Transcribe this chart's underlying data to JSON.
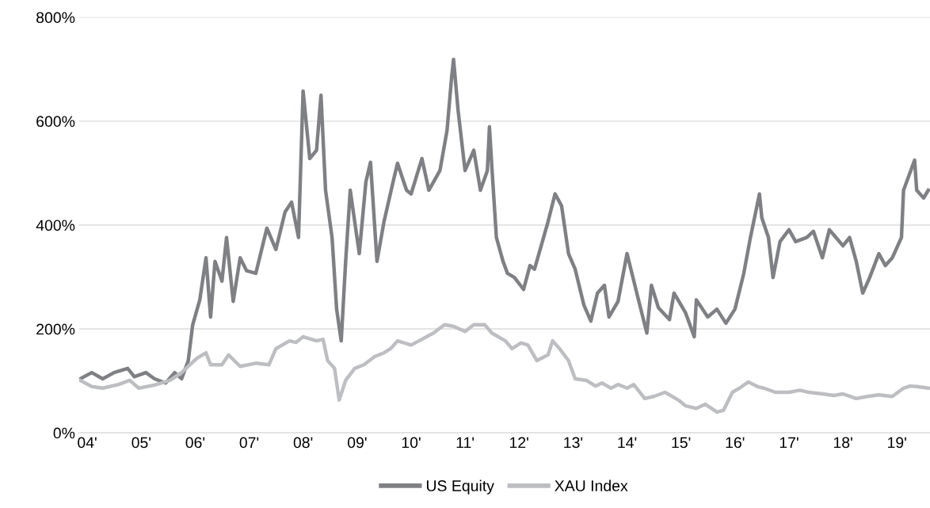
{
  "chart_data": {
    "type": "line",
    "grid": "y",
    "legend": "bottom",
    "line_style": "solid",
    "marker": "none",
    "xlim": [
      "2003-11-07",
      "2019-08-13"
    ],
    "ylim": [
      0,
      800
    ],
    "xticks": [
      {
        "value": "2004",
        "label": "04'"
      },
      {
        "value": "2005",
        "label": "05'"
      },
      {
        "value": "2006",
        "label": "06'"
      },
      {
        "value": "2007",
        "label": "07'"
      },
      {
        "value": "2008",
        "label": "08'"
      },
      {
        "value": "2009",
        "label": "09'"
      },
      {
        "value": "2010",
        "label": "10'"
      },
      {
        "value": "2011",
        "label": "11'"
      },
      {
        "value": "2012",
        "label": "12'"
      },
      {
        "value": "2013",
        "label": "13'"
      },
      {
        "value": "2014",
        "label": "14'"
      },
      {
        "value": "2015",
        "label": "15'"
      },
      {
        "value": "2016",
        "label": "16'"
      },
      {
        "value": "2017",
        "label": "17'"
      },
      {
        "value": "2018",
        "label": "18'"
      },
      {
        "value": "2019",
        "label": "19'"
      }
    ],
    "yticks": [
      {
        "value": 0,
        "label": "0%"
      },
      {
        "value": 200,
        "label": "200%"
      },
      {
        "value": 400,
        "label": "400%"
      },
      {
        "value": 600,
        "label": "600%"
      },
      {
        "value": 800,
        "label": "800%"
      }
    ],
    "series": [
      {
        "name": "US Equity",
        "color": "#7f8084",
        "x": [
          "2003-11-15",
          "2004-02-01",
          "2004-04-15",
          "2004-07-01",
          "2004-10-01",
          "2004-11-15",
          "2005-02-01",
          "2005-04-01",
          "2005-06-15",
          "2005-08-15",
          "2005-10-01",
          "2005-11-15",
          "2005-12-15",
          "2006-02-01",
          "2006-03-15",
          "2006-04-15",
          "2006-05-15",
          "2006-07-01",
          "2006-08-01",
          "2006-09-15",
          "2006-11-01",
          "2006-12-15",
          "2007-02-15",
          "2007-05-01",
          "2007-07-01",
          "2007-09-01",
          "2007-10-15",
          "2007-12-01",
          "2008-01-01",
          "2008-02-15",
          "2008-04-01",
          "2008-05-01",
          "2008-06-01",
          "2008-07-15",
          "2008-08-15",
          "2008-09-15",
          "2008-10-15",
          "2008-11-15",
          "2009-01-15",
          "2009-03-01",
          "2009-04-01",
          "2009-05-15",
          "2009-07-01",
          "2009-09-01",
          "2009-10-01",
          "2009-12-01",
          "2010-01-01",
          "2010-03-15",
          "2010-05-01",
          "2010-07-15",
          "2010-09-01",
          "2010-10-01",
          "2010-10-15",
          "2010-11-15",
          "2011-01-01",
          "2011-03-01",
          "2011-04-15",
          "2011-06-01",
          "2011-06-15",
          "2011-07-01",
          "2011-08-01",
          "2011-09-15",
          "2011-10-15",
          "2011-12-01",
          "2012-02-01",
          "2012-03-15",
          "2012-04-15",
          "2012-07-15",
          "2012-09-01",
          "2012-10-15",
          "2012-12-01",
          "2013-01-15",
          "2013-03-15",
          "2013-05-01",
          "2013-06-15",
          "2013-08-01",
          "2013-09-01",
          "2013-11-01",
          "2014-01-01",
          "2014-03-15",
          "2014-05-15",
          "2014-06-15",
          "2014-08-01",
          "2014-10-15",
          "2014-11-15",
          "2015-02-01",
          "2015-04-01",
          "2015-04-15",
          "2015-07-01",
          "2015-09-01",
          "2015-11-01",
          "2016-01-01",
          "2016-03-01",
          "2016-04-15",
          "2016-06-15",
          "2016-07-01",
          "2016-08-15",
          "2016-09-15",
          "2016-11-01",
          "2017-01-01",
          "2017-02-15",
          "2017-05-01",
          "2017-06-15",
          "2017-08-15",
          "2017-10-01",
          "2017-11-15",
          "2018-01-01",
          "2018-02-15",
          "2018-04-01",
          "2018-05-15",
          "2018-07-01",
          "2018-09-01",
          "2018-10-15",
          "2018-12-01",
          "2019-02-01",
          "2019-02-15",
          "2019-05-01",
          "2019-05-15",
          "2019-07-01",
          "2019-08-01"
        ],
        "values": [
          104,
          116,
          104,
          116,
          124,
          108,
          116,
          104,
          96,
          116,
          104,
          139,
          208,
          256,
          337,
          223,
          330,
          292,
          376,
          253,
          337,
          312,
          307,
          394,
          353,
          425,
          444,
          376,
          658,
          528,
          544,
          650,
          467,
          376,
          238,
          177,
          330,
          467,
          345,
          483,
          521,
          330,
          406,
          483,
          519,
          467,
          460,
          528,
          467,
          505,
          582,
          681,
          719,
          620,
          505,
          544,
          467,
          505,
          589,
          513,
          376,
          330,
          307,
          299,
          276,
          322,
          315,
          406,
          460,
          437,
          345,
          315,
          246,
          215,
          269,
          284,
          223,
          253,
          345,
          261,
          192,
          284,
          241,
          218,
          269,
          231,
          185,
          256,
          223,
          238,
          211,
          238,
          307,
          376,
          460,
          414,
          376,
          299,
          368,
          391,
          368,
          376,
          388,
          337,
          391,
          376,
          360,
          376,
          330,
          269,
          299,
          345,
          322,
          337,
          376,
          467,
          525,
          467,
          452,
          467
        ]
      },
      {
        "name": "XAU Index",
        "color": "#bdbec2",
        "x": [
          "2003-11-15",
          "2004-02-01",
          "2004-04-15",
          "2004-08-01",
          "2004-10-15",
          "2004-12-15",
          "2005-04-01",
          "2005-07-15",
          "2005-10-01",
          "2005-11-15",
          "2006-01-15",
          "2006-03-15",
          "2006-04-15",
          "2006-07-01",
          "2006-08-15",
          "2006-11-01",
          "2007-02-15",
          "2007-05-15",
          "2007-07-01",
          "2007-10-01",
          "2007-11-15",
          "2008-01-01",
          "2008-04-01",
          "2008-05-15",
          "2008-06-15",
          "2008-08-01",
          "2008-09-01",
          "2008-10-15",
          "2008-12-15",
          "2009-02-15",
          "2009-05-01",
          "2009-07-01",
          "2009-08-15",
          "2009-10-01",
          "2010-01-01",
          "2010-03-15",
          "2010-06-01",
          "2010-08-15",
          "2010-10-15",
          "2011-01-01",
          "2011-03-01",
          "2011-05-15",
          "2011-07-01",
          "2011-10-01",
          "2011-11-15",
          "2012-01-15",
          "2012-03-01",
          "2012-05-01",
          "2012-07-15",
          "2012-08-15",
          "2012-10-01",
          "2012-12-01",
          "2013-01-15",
          "2013-04-01",
          "2013-06-01",
          "2013-07-15",
          "2013-09-15",
          "2013-11-01",
          "2014-01-01",
          "2014-02-15",
          "2014-05-01",
          "2014-07-01",
          "2014-09-15",
          "2014-12-15",
          "2015-02-01",
          "2015-04-15",
          "2015-06-15",
          "2015-09-01",
          "2015-10-15",
          "2015-12-15",
          "2016-02-01",
          "2016-04-01",
          "2016-06-01",
          "2016-07-15",
          "2016-10-01",
          "2017-01-01",
          "2017-03-15",
          "2017-05-15",
          "2017-08-15",
          "2017-11-01",
          "2018-01-01",
          "2018-04-01",
          "2018-06-15",
          "2018-09-01",
          "2018-12-01",
          "2019-02-15",
          "2019-04-01",
          "2019-05-15",
          "2019-08-01"
        ],
        "values": [
          101,
          89,
          86,
          93,
          101,
          86,
          92,
          101,
          116,
          128,
          144,
          154,
          131,
          131,
          150,
          128,
          134,
          131,
          162,
          177,
          174,
          185,
          177,
          180,
          139,
          124,
          63,
          101,
          124,
          131,
          147,
          154,
          162,
          177,
          169,
          180,
          192,
          208,
          205,
          195,
          208,
          208,
          192,
          177,
          162,
          173,
          169,
          139,
          150,
          177,
          162,
          139,
          104,
          101,
          90,
          96,
          86,
          93,
          86,
          93,
          66,
          70,
          78,
          63,
          52,
          47,
          55,
          40,
          43,
          78,
          86,
          98,
          89,
          86,
          78,
          78,
          82,
          78,
          75,
          72,
          75,
          66,
          70,
          73,
          70,
          86,
          90,
          89,
          86
        ]
      }
    ]
  }
}
